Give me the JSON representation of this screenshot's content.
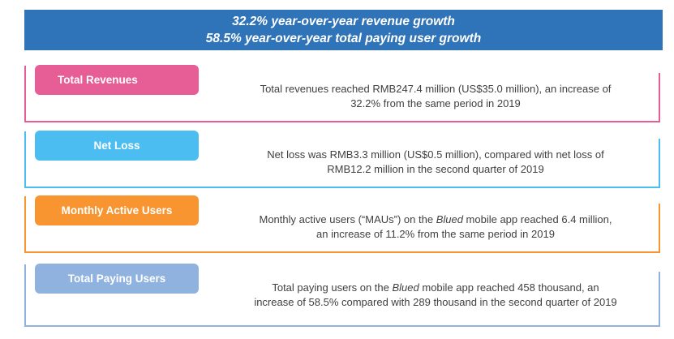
{
  "banner": {
    "line1": "32.2% year-over-year revenue growth",
    "line2": "58.5% year-over-year total paying user growth"
  },
  "cards": {
    "revenues": {
      "label": "Total Revenues",
      "line1": "Total revenues reached RMB247.4 million (US$35.0 million), an increase of",
      "line2": "32.2% from the same period in 2019",
      "color": "#e75d95"
    },
    "net_loss": {
      "label": "Net Loss",
      "line1": "Net loss was RMB3.3 million (US$0.5 million), compared with net loss of",
      "line2": "RMB12.2 million in the second quarter of 2019",
      "color": "#4cbdf0"
    },
    "mau": {
      "label": "Monthly Active Users",
      "line1_pre": "Monthly active users (“MAUs”) on the ",
      "app_name": "Blued",
      "line1_post": " mobile app reached 6.4 million,",
      "line2": "an increase of 11.2% from the same period in 2019",
      "color": "#f99530"
    },
    "paying": {
      "label": "Total Paying Users",
      "line1_pre": "Total paying users on the ",
      "app_name": "Blued",
      "line1_post": " mobile app reached 458 thousand, an",
      "line2": "increase of 58.5% compared with 289 thousand in the second quarter of 2019",
      "color": "#8fb2df"
    }
  }
}
